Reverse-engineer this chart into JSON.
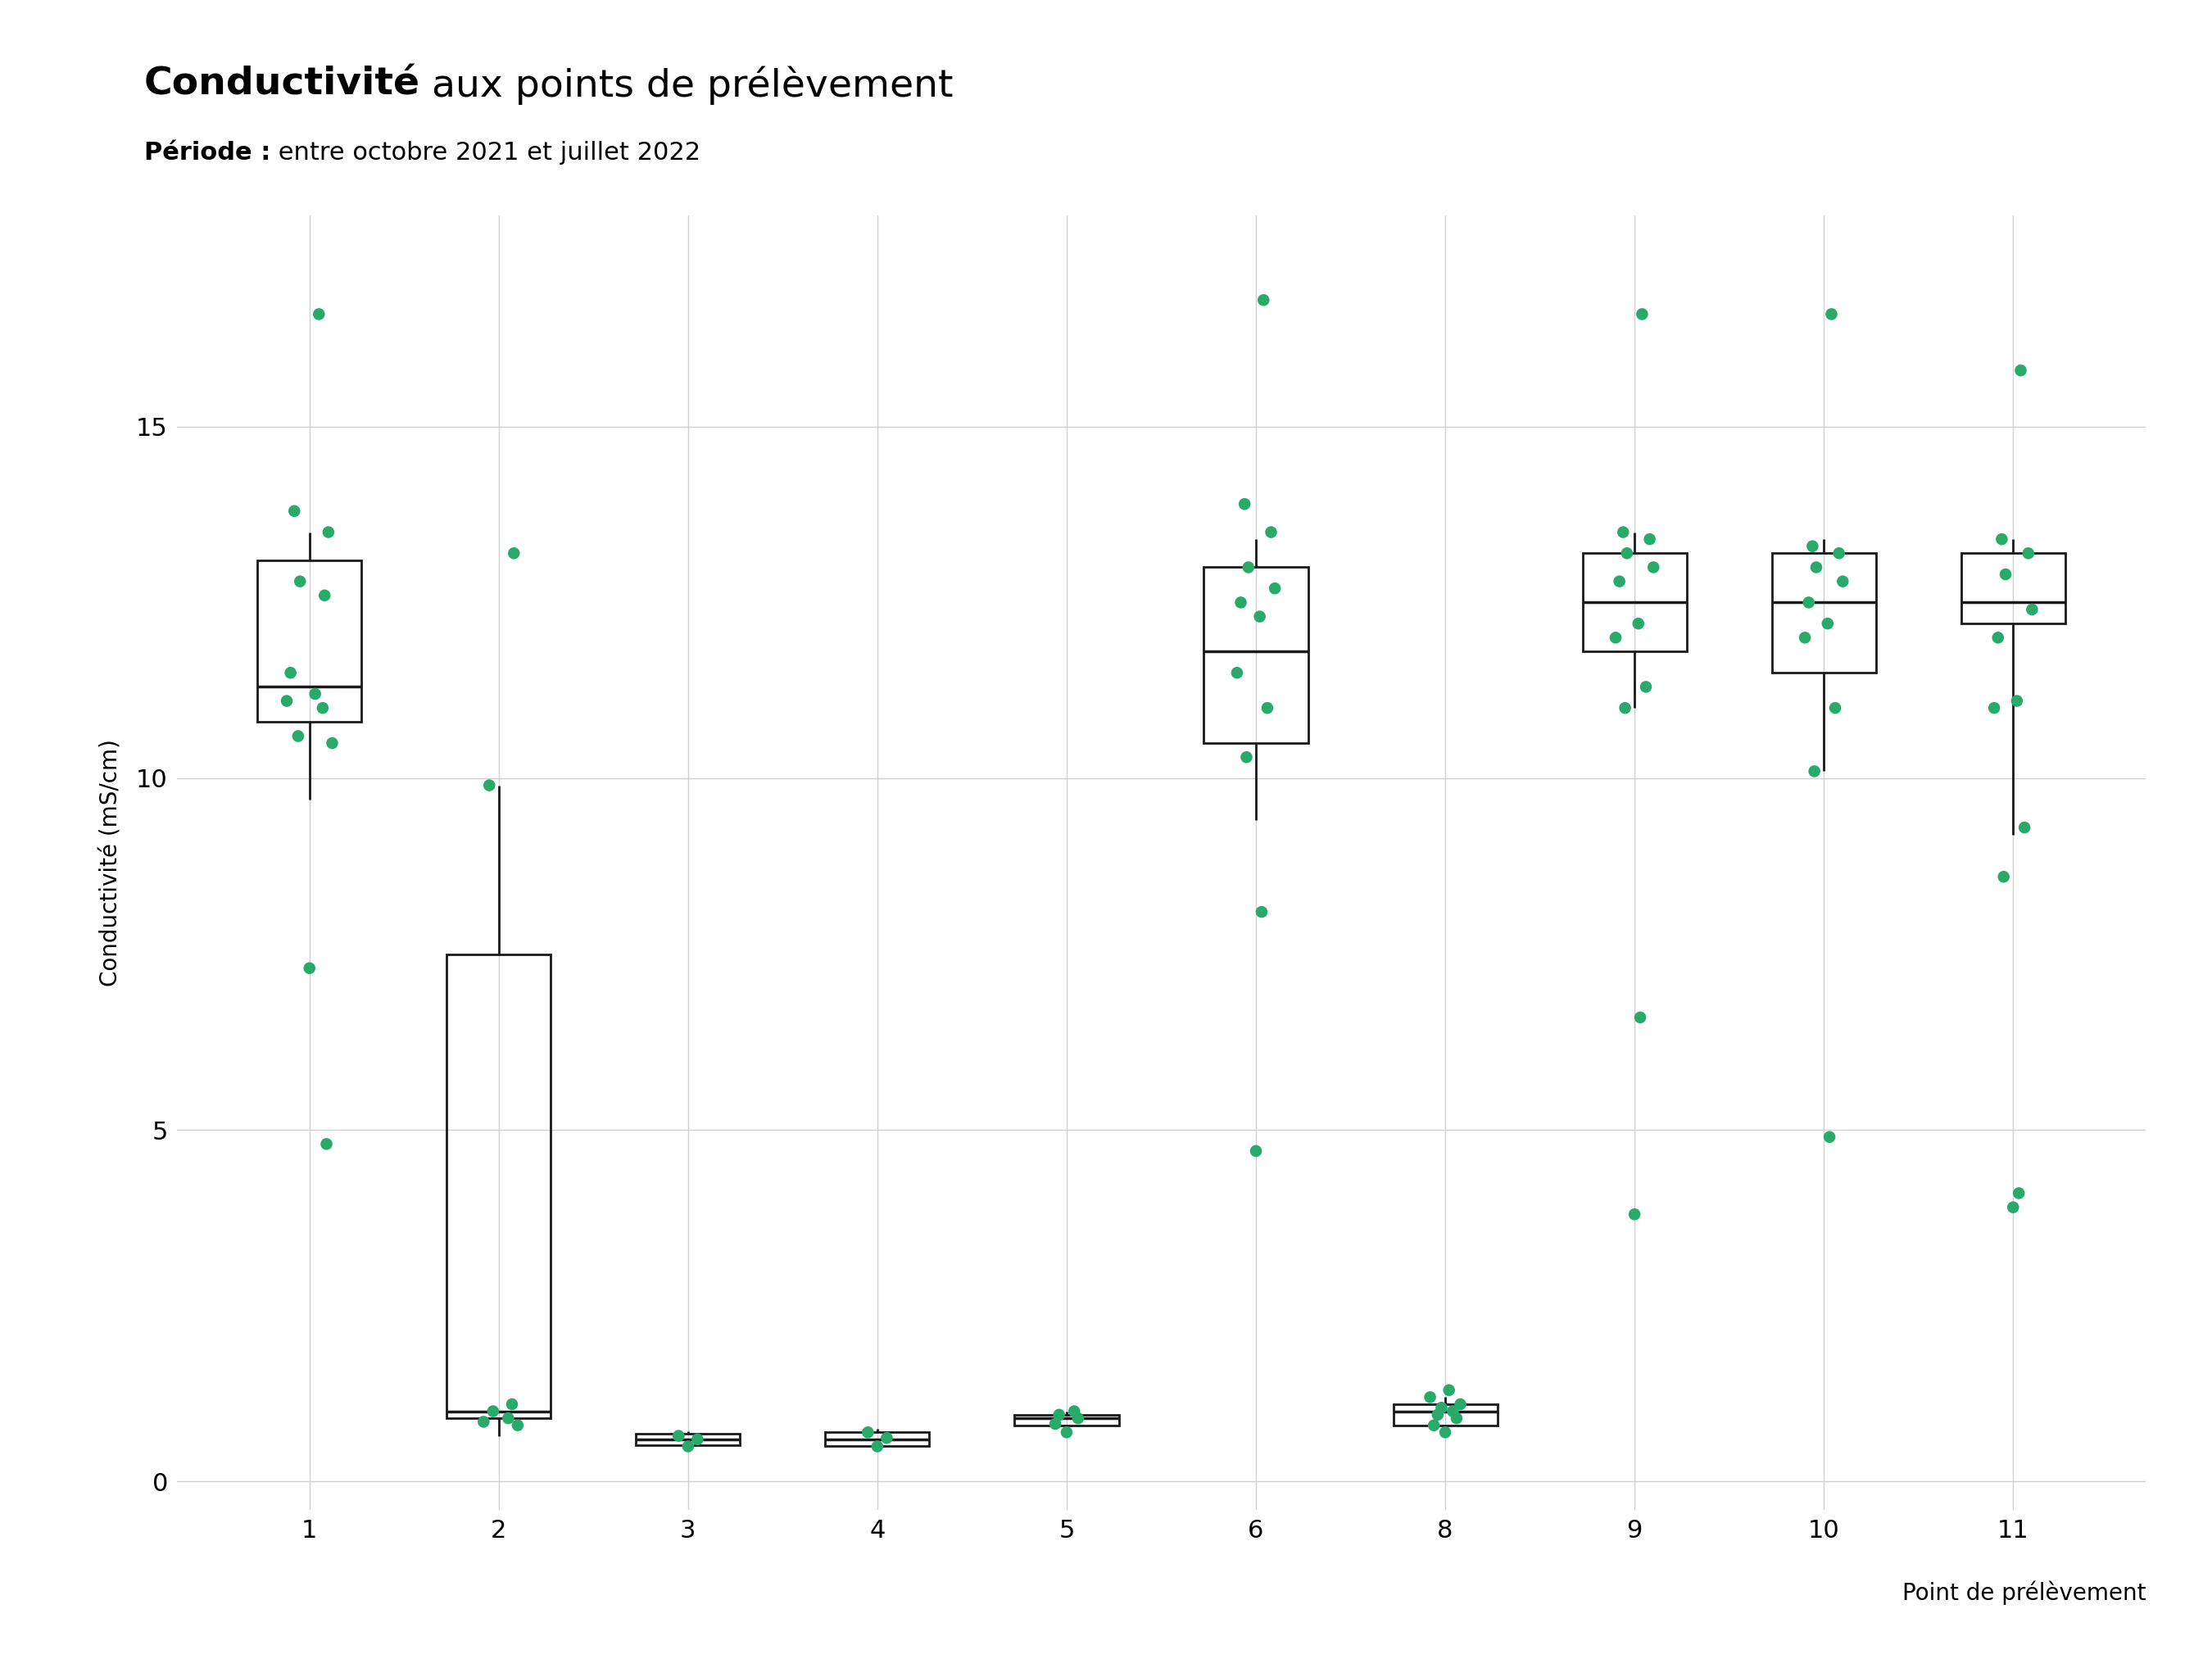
{
  "title_bold": "Conductivité",
  "title_regular": " aux points de prélèvement",
  "subtitle_bold": "Période :",
  "subtitle_regular": " entre octobre 2021 et juillet 2022",
  "ylabel": "Conductivité (mS/cm)",
  "xlabel": "Point de prélèvement",
  "ylim": [
    -0.4,
    18.0
  ],
  "yticks": [
    0,
    5,
    10,
    15
  ],
  "background_color": "#ffffff",
  "grid_color": "#d0d0d0",
  "box_color": "#1a1a1a",
  "dot_color": "#2aaa6a",
  "categories": [
    "1",
    "2",
    "3",
    "4",
    "5",
    "6",
    "8",
    "9",
    "10",
    "11"
  ],
  "box_stats": {
    "1": {
      "q1": 10.8,
      "median": 11.3,
      "q3": 13.1,
      "whislo": 9.7,
      "whishi": 13.5
    },
    "2": {
      "q1": 0.9,
      "median": 1.0,
      "q3": 7.5,
      "whislo": 0.65,
      "whishi": 9.9
    },
    "3": {
      "q1": 0.52,
      "median": 0.6,
      "q3": 0.68,
      "whislo": 0.48,
      "whishi": 0.72
    },
    "4": {
      "q1": 0.5,
      "median": 0.6,
      "q3": 0.7,
      "whislo": 0.45,
      "whishi": 0.75
    },
    "5": {
      "q1": 0.8,
      "median": 0.9,
      "q3": 0.95,
      "whislo": 0.7,
      "whishi": 1.0
    },
    "6": {
      "q1": 10.5,
      "median": 11.8,
      "q3": 13.0,
      "whislo": 9.4,
      "whishi": 13.4
    },
    "8": {
      "q1": 0.8,
      "median": 1.0,
      "q3": 1.1,
      "whislo": 0.65,
      "whishi": 1.2
    },
    "9": {
      "q1": 11.8,
      "median": 12.5,
      "q3": 13.2,
      "whislo": 11.0,
      "whishi": 13.5
    },
    "10": {
      "q1": 11.5,
      "median": 12.5,
      "q3": 13.2,
      "whislo": 10.1,
      "whishi": 13.4
    },
    "11": {
      "q1": 12.2,
      "median": 12.5,
      "q3": 13.2,
      "whislo": 9.2,
      "whishi": 13.4
    }
  },
  "jitter_data": {
    "1": [
      16.6,
      13.8,
      13.5,
      12.8,
      12.6,
      11.5,
      11.2,
      11.1,
      11.0,
      10.6,
      10.5,
      7.3,
      4.8
    ],
    "2": [
      13.2,
      9.9,
      0.8,
      0.85,
      0.9,
      1.0,
      1.1
    ],
    "3": [
      0.5,
      0.6,
      0.65
    ],
    "4": [
      0.5,
      0.62,
      0.7
    ],
    "5": [
      0.7,
      0.82,
      0.9,
      0.95,
      1.0
    ],
    "6": [
      16.8,
      13.9,
      13.5,
      13.0,
      12.7,
      12.5,
      12.3,
      11.5,
      11.0,
      10.3,
      8.1,
      4.7
    ],
    "8": [
      0.7,
      0.8,
      0.9,
      0.95,
      1.0,
      1.05,
      1.1,
      1.2,
      1.3
    ],
    "9": [
      16.6,
      13.5,
      13.4,
      13.2,
      13.0,
      12.8,
      12.2,
      12.0,
      11.3,
      11.0,
      6.6,
      3.8
    ],
    "10": [
      16.6,
      13.3,
      13.2,
      13.0,
      12.8,
      12.5,
      12.2,
      12.0,
      11.0,
      10.1,
      4.9
    ],
    "11": [
      15.8,
      13.4,
      13.2,
      12.9,
      12.4,
      12.0,
      11.1,
      11.0,
      9.3,
      8.6,
      4.1,
      3.9
    ]
  },
  "jitter_offsets": {
    "1": [
      0.05,
      -0.08,
      0.1,
      -0.05,
      0.08,
      -0.1,
      0.03,
      -0.12,
      0.07,
      -0.06,
      0.12,
      0.0,
      0.09
    ],
    "2": [
      0.08,
      -0.05,
      0.1,
      -0.08,
      0.05,
      -0.03,
      0.07
    ],
    "3": [
      0.0,
      0.05,
      -0.05
    ],
    "4": [
      0.0,
      0.05,
      -0.05
    ],
    "5": [
      0.0,
      -0.06,
      0.06,
      -0.04,
      0.04
    ],
    "6": [
      0.04,
      -0.06,
      0.08,
      -0.04,
      0.1,
      -0.08,
      0.02,
      -0.1,
      0.06,
      -0.05,
      0.03,
      0.0
    ],
    "8": [
      0.0,
      -0.06,
      0.06,
      -0.04,
      0.04,
      -0.02,
      0.08,
      -0.08,
      0.02
    ],
    "9": [
      0.04,
      -0.06,
      0.08,
      -0.04,
      0.1,
      -0.08,
      0.02,
      -0.1,
      0.06,
      -0.05,
      0.03,
      0.0
    ],
    "10": [
      0.04,
      -0.06,
      0.08,
      -0.04,
      0.1,
      -0.08,
      0.02,
      -0.1,
      0.06,
      -0.05,
      0.03
    ],
    "11": [
      0.04,
      -0.06,
      0.08,
      -0.04,
      0.1,
      -0.08,
      0.02,
      -0.1,
      0.06,
      -0.05,
      0.03,
      0.0
    ]
  },
  "box_width": 0.55,
  "title_fontsize": 34,
  "subtitle_fontsize": 22,
  "tick_fontsize": 22,
  "label_fontsize": 20
}
